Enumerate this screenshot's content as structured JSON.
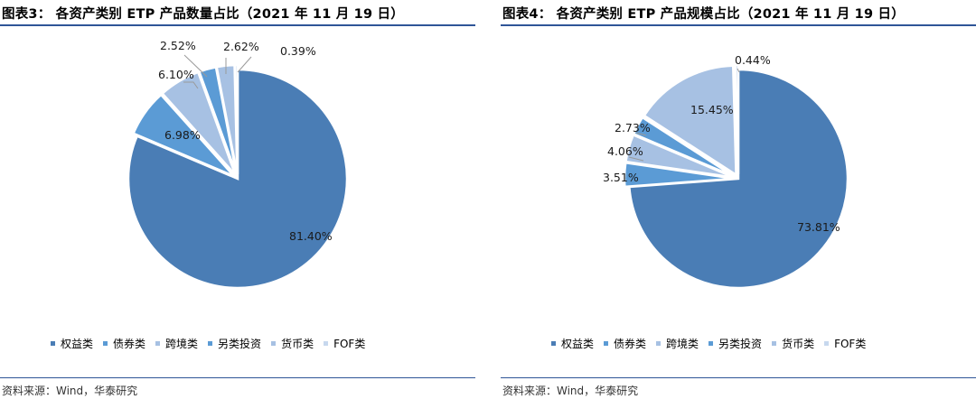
{
  "colors": {
    "equity": "#4a7db5",
    "bond": "#5b9bd5",
    "cross_border": "#a7c1e3",
    "alternative": "#5b9bd5",
    "money_market": "#a7c1e3",
    "fof": "#c7d8ee",
    "rule": "#2f5597"
  },
  "legend": [
    "权益类",
    "债券类",
    "跨境类",
    "另类投资",
    "货币类",
    "FOF类"
  ],
  "source": "资料来源：Wind，华泰研究",
  "chart_data": [
    {
      "type": "pie",
      "title": "图表3：  各资产类别 ETP 产品数量占比（2021 年 11 月 19 日）",
      "categories": [
        "权益类",
        "债券类",
        "跨境类",
        "另类投资",
        "货币类",
        "FOF类"
      ],
      "values": [
        81.4,
        6.98,
        6.1,
        2.52,
        2.62,
        0.39
      ],
      "labels": [
        "81.40%",
        "6.98%",
        "6.10%",
        "2.52%",
        "2.62%",
        "0.39%"
      ],
      "legend_position": "bottom"
    },
    {
      "type": "pie",
      "title": "图表4：  各资产类别 ETP 产品规模占比（2021 年 11 月 19 日）",
      "categories": [
        "权益类",
        "债券类",
        "跨境类",
        "另类投资",
        "货币类",
        "FOF类"
      ],
      "values": [
        73.81,
        3.51,
        4.06,
        2.73,
        15.45,
        0.44
      ],
      "labels": [
        "73.81%",
        "3.51%",
        "4.06%",
        "2.73%",
        "15.45%",
        "0.44%"
      ],
      "legend_position": "bottom"
    }
  ]
}
